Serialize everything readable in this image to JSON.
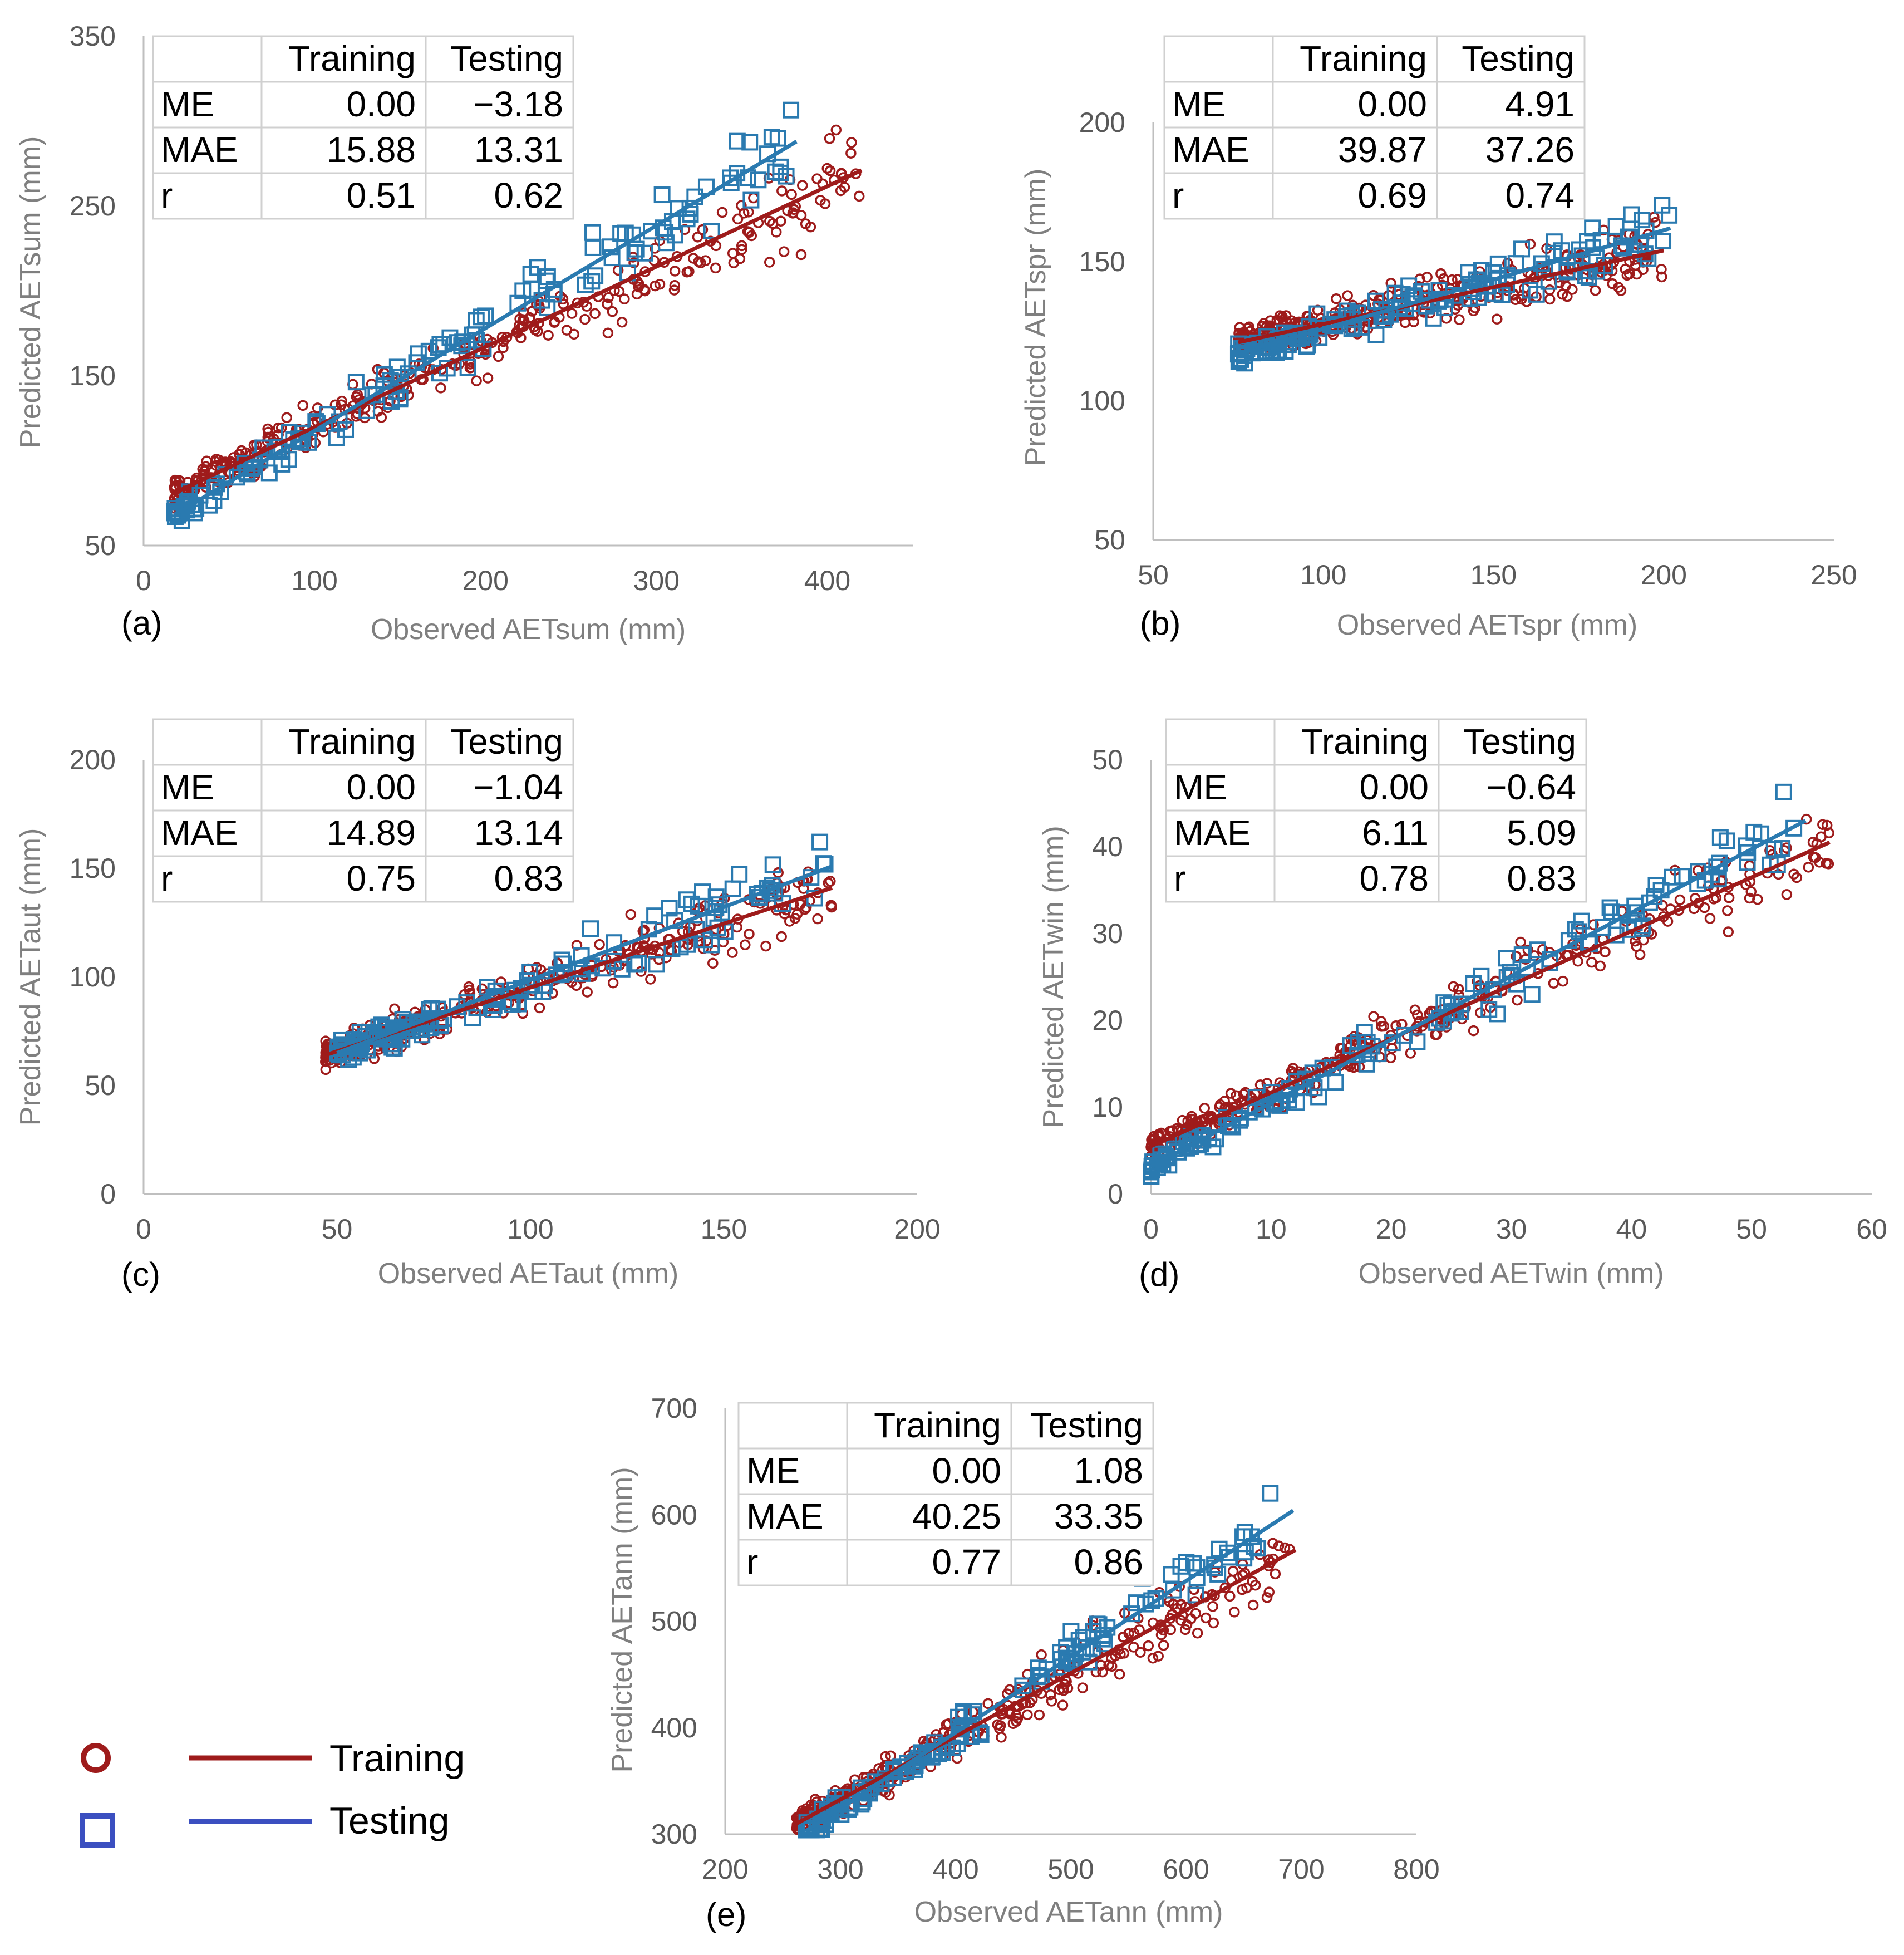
{
  "colors": {
    "training": "#9e1b1b",
    "testing": "#2a7ab0",
    "legend_testing": "#3b4fc0",
    "axis": "#bfbfbf"
  },
  "legend": {
    "training": "Training",
    "testing": "Testing"
  },
  "chart_data": [
    {
      "type": "scatter",
      "panel_label": "(a)",
      "xlabel": "Observed  AETsum (mm)",
      "ylabel": "Predicted AETsum (mm)",
      "xlim": [
        0,
        450
      ],
      "ylim": [
        50,
        350
      ],
      "x_ticks": [
        0,
        100,
        200,
        300,
        400
      ],
      "y_ticks": [
        50,
        150,
        250,
        350
      ],
      "x_tick_labels": [
        "0",
        "100",
        "200",
        "300",
        "400"
      ],
      "y_tick_labels": [
        "50",
        "150",
        "250",
        "350"
      ],
      "series": [
        {
          "name": "Training",
          "marker": "circle",
          "fit_line": [
            [
              18,
              81
            ],
            [
              420,
              271
            ]
          ]
        },
        {
          "name": "Testing",
          "marker": "square",
          "fit_line": [
            [
              18,
              68
            ],
            [
              382,
              288
            ]
          ]
        }
      ],
      "stats": {
        "headers": [
          "",
          "Training",
          "Testing"
        ],
        "rows": [
          [
            "ME",
            "0.00",
            "−3.18"
          ],
          [
            "MAE",
            "15.88",
            "13.31"
          ],
          [
            "r",
            "0.51",
            "0.62"
          ]
        ]
      }
    },
    {
      "type": "scatter",
      "panel_label": "(b)",
      "xlabel": "Observed  AETspr (mm)",
      "ylabel": "Predicted AETspr (mm)",
      "xlim": [
        50,
        250
      ],
      "ylim": [
        50,
        200
      ],
      "x_ticks": [
        50,
        100,
        150,
        200,
        250
      ],
      "y_ticks": [
        50,
        100,
        150,
        200
      ],
      "x_tick_labels": [
        "50",
        "100",
        "150",
        "200",
        "250"
      ],
      "y_tick_labels": [
        "50",
        "100",
        "150",
        "200"
      ],
      "series": [
        {
          "name": "Training",
          "marker": "circle",
          "fit_line": [
            [
              75,
              121
            ],
            [
              200,
              154
            ]
          ]
        },
        {
          "name": "Testing",
          "marker": "square",
          "fit_line": [
            [
              75,
              117
            ],
            [
              202,
              162
            ]
          ]
        }
      ],
      "stats": {
        "headers": [
          "",
          "Training",
          "Testing"
        ],
        "rows": [
          [
            "ME",
            "0.00",
            "4.91"
          ],
          [
            "MAE",
            "39.87",
            "37.26"
          ],
          [
            "r",
            "0.69",
            "0.74"
          ]
        ]
      }
    },
    {
      "type": "scatter",
      "panel_label": "(c)",
      "xlabel": "Observed  AETaut (mm)",
      "ylabel": "Predicted AETaut (mm)",
      "xlim": [
        0,
        200
      ],
      "ylim": [
        0,
        200
      ],
      "x_ticks": [
        0,
        50,
        100,
        150,
        200
      ],
      "y_ticks": [
        0,
        50,
        100,
        150,
        200
      ],
      "x_tick_labels": [
        "0",
        "50",
        "100",
        "150",
        "200"
      ],
      "y_tick_labels": [
        "0",
        "50",
        "100",
        "150",
        "200"
      ],
      "series": [
        {
          "name": "Training",
          "marker": "circle",
          "fit_line": [
            [
              47,
              64
            ],
            [
              178,
              141
            ]
          ]
        },
        {
          "name": "Testing",
          "marker": "square",
          "fit_line": [
            [
              50,
              65
            ],
            [
              178,
              151
            ]
          ]
        }
      ],
      "stats": {
        "headers": [
          "",
          "Training",
          "Testing"
        ],
        "rows": [
          [
            "ME",
            "0.00",
            "−1.04"
          ],
          [
            "MAE",
            "14.89",
            "13.14"
          ],
          [
            "r",
            "0.75",
            "0.83"
          ]
        ]
      }
    },
    {
      "type": "scatter",
      "panel_label": "(d)",
      "xlabel": "Observed  AETwin (mm)",
      "ylabel": "Predicted AETwin (mm)",
      "xlim": [
        0,
        60
      ],
      "ylim": [
        0,
        50
      ],
      "x_ticks": [
        0,
        10,
        20,
        30,
        40,
        50,
        60
      ],
      "y_ticks": [
        0,
        10,
        20,
        30,
        40,
        50
      ],
      "x_tick_labels": [
        "0",
        "10",
        "20",
        "30",
        "40",
        "50",
        "60"
      ],
      "y_tick_labels": [
        "0",
        "10",
        "20",
        "30",
        "40",
        "50"
      ],
      "series": [
        {
          "name": "Training",
          "marker": "circle",
          "fit_line": [
            [
              0,
              5.5
            ],
            [
              56.5,
              40.5
            ]
          ]
        },
        {
          "name": "Testing",
          "marker": "square",
          "fit_line": [
            [
              0,
              3.2
            ],
            [
              54.5,
              43
            ]
          ]
        }
      ],
      "stats": {
        "headers": [
          "",
          "Training",
          "Testing"
        ],
        "rows": [
          [
            "ME",
            "0.00",
            "−0.64"
          ],
          [
            "MAE",
            "6.11",
            "5.09"
          ],
          [
            "r",
            "0.78",
            "0.83"
          ]
        ]
      }
    },
    {
      "type": "scatter",
      "panel_label": "(e)",
      "xlabel": "Observed AETann (mm)",
      "ylabel": "Predicted AETann (mm)",
      "xlim": [
        200,
        800
      ],
      "ylim": [
        300,
        700
      ],
      "x_ticks": [
        200,
        300,
        400,
        500,
        600,
        700,
        800
      ],
      "y_ticks": [
        300,
        400,
        500,
        600,
        700
      ],
      "x_tick_labels": [
        "200",
        "300",
        "400",
        "500",
        "600",
        "700",
        "800"
      ],
      "y_tick_labels": [
        "300",
        "400",
        "500",
        "600",
        "700"
      ],
      "series": [
        {
          "name": "Training",
          "marker": "circle",
          "fit_line": [
            [
              262,
              310
            ],
            [
              695,
              567
            ]
          ]
        },
        {
          "name": "Testing",
          "marker": "square",
          "fit_line": [
            [
              270,
              303
            ],
            [
              693,
              604
            ]
          ]
        }
      ],
      "stats": {
        "headers": [
          "",
          "Training",
          "Testing"
        ],
        "rows": [
          [
            "ME",
            "0.00",
            "1.08"
          ],
          [
            "MAE",
            "40.25",
            "33.35"
          ],
          [
            "r",
            "0.77",
            "0.86"
          ]
        ]
      }
    }
  ]
}
